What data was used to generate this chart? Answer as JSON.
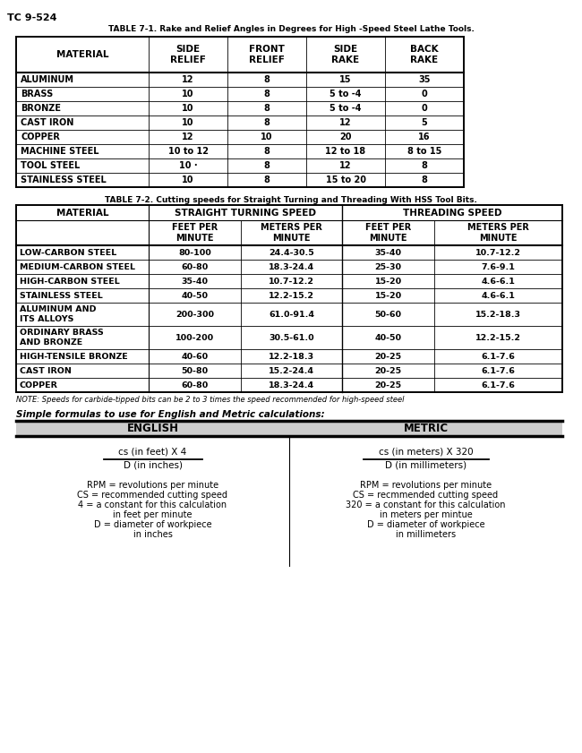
{
  "page_label": "TC 9-524",
  "table1_title": "TABLE 7-1. Rake and Relief Angles in Degrees for High -Speed Steel Lathe Tools.",
  "table1_headers": [
    "MATERIAL",
    "SIDE\nRELIEF",
    "FRONT\nRELIEF",
    "SIDE\nRAKE",
    "BACK\nRAKE"
  ],
  "table1_rows": [
    [
      "ALUMINUM",
      "12",
      "8",
      "15",
      "35"
    ],
    [
      "BRASS",
      "10",
      "8",
      "5 to -4",
      "0"
    ],
    [
      "BRONZE",
      "10",
      "8",
      "5 to -4",
      "0"
    ],
    [
      "CAST IRON",
      "10",
      "8",
      "12",
      "5"
    ],
    [
      "COPPER",
      "12",
      "10",
      "20",
      "16"
    ],
    [
      "MACHINE STEEL",
      "10 to 12",
      "8",
      "12 to 18",
      "8 to 15"
    ],
    [
      "TOOL STEEL",
      "10 ·",
      "8",
      "12",
      "8"
    ],
    [
      "STAINLESS STEEL",
      "10",
      "8",
      "15 to 20",
      "8"
    ]
  ],
  "table2_title": "TABLE 7-2. Cutting speeds for Straight Turning and Threading With HSS Tool Bits.",
  "table2_rows": [
    [
      "LOW-CARBON STEEL",
      "80-100",
      "24.4-30.5",
      "35-40",
      "10.7-12.2"
    ],
    [
      "MEDIUM-CARBON STEEL",
      "60-80",
      "18.3-24.4",
      "25-30",
      "7.6-9.1"
    ],
    [
      "HIGH-CARBON STEEL",
      "35-40",
      "10.7-12.2",
      "15-20",
      "4.6-6.1"
    ],
    [
      "STAINLESS STEEL",
      "40-50",
      "12.2-15.2",
      "15-20",
      "4.6-6.1"
    ],
    [
      "ALUMINUM AND\nITS ALLOYS",
      "200-300",
      "61.0-91.4",
      "50-60",
      "15.2-18.3"
    ],
    [
      "ORDINARY BRASS\nAND BRONZE",
      "100-200",
      "30.5-61.0",
      "40-50",
      "12.2-15.2"
    ],
    [
      "HIGH-TENSILE BRONZE",
      "40-60",
      "12.2-18.3",
      "20-25",
      "6.1-7.6"
    ],
    [
      "CAST IRON",
      "50-80",
      "15.2-24.4",
      "20-25",
      "6.1-7.6"
    ],
    [
      "COPPER",
      "60-80",
      "18.3-24.4",
      "20-25",
      "6.1-7.6"
    ]
  ],
  "table2_note": "NOTE: Speeds for carbide-tipped bits can be 2 to 3 times the speed recommended for high-speed steel",
  "formulas_label": "Simple formulas to use for English and Metric calculations:",
  "english_header": "ENGLISH",
  "metric_header": "METRIC",
  "english_numerator": "cs (in feet) X 4",
  "english_denominator": "D (in inches)",
  "metric_numerator": "cs (in meters) X 320",
  "metric_denominator": "D (in millimeters)",
  "english_notes": [
    "RPM = revolutions per minute",
    "CS = recommended cutting speed",
    "4 = a constant for this calculation",
    "in feet per minute",
    "D = diameter of workpiece",
    "in inches"
  ],
  "metric_notes": [
    "RPM = revolutions per minute",
    "CS = recmmended cutting speed",
    "320 = a constant for this calculation",
    "in meters per mintue",
    "D = diameter of workpiece",
    "in millimeters"
  ],
  "bg_color": "#ffffff",
  "text_color": "#000000"
}
